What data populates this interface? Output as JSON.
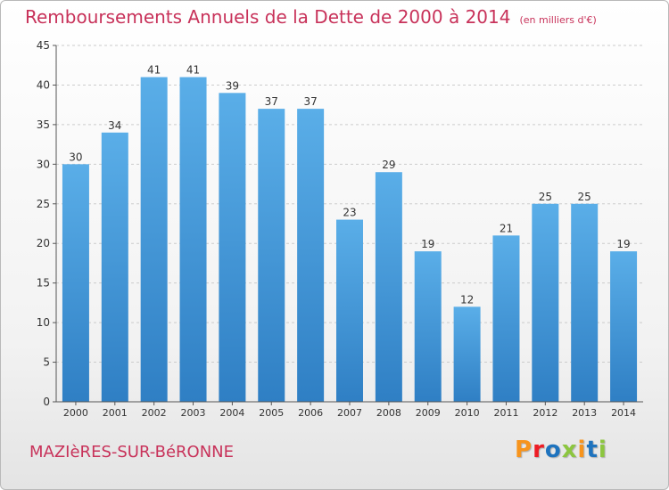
{
  "header": {
    "title": "Remboursements Annuels de la Dette de 2000 à 2014",
    "subtitle": "(en milliers d'€)"
  },
  "footer": {
    "commune": "MAZIèRES-SUR-BéRONNE",
    "brand_letters": [
      "P",
      "r",
      "o",
      "x",
      "i",
      "t",
      "i"
    ],
    "brand_colors": [
      "#f7941d",
      "#ed1c24",
      "#1e73be",
      "#8cc63f",
      "#f7941d",
      "#1e73be",
      "#8cc63f"
    ]
  },
  "colors": {
    "bar_light": "#5aaee8",
    "bar_dark": "#2f7fc4",
    "axis": "#555555",
    "grid": "#cccccc",
    "title": "#c8325a"
  },
  "chart_data": {
    "type": "bar",
    "categories": [
      "2000",
      "2001",
      "2002",
      "2003",
      "2004",
      "2005",
      "2006",
      "2007",
      "2008",
      "2009",
      "2010",
      "2011",
      "2012",
      "2013",
      "2014"
    ],
    "values": [
      30,
      34,
      41,
      41,
      39,
      37,
      37,
      23,
      29,
      19,
      12,
      21,
      25,
      25,
      19
    ],
    "ylim": [
      0,
      45
    ],
    "yticks": [
      0,
      5,
      10,
      15,
      20,
      25,
      30,
      35,
      40,
      45
    ],
    "grid": true,
    "data_labels": true
  }
}
